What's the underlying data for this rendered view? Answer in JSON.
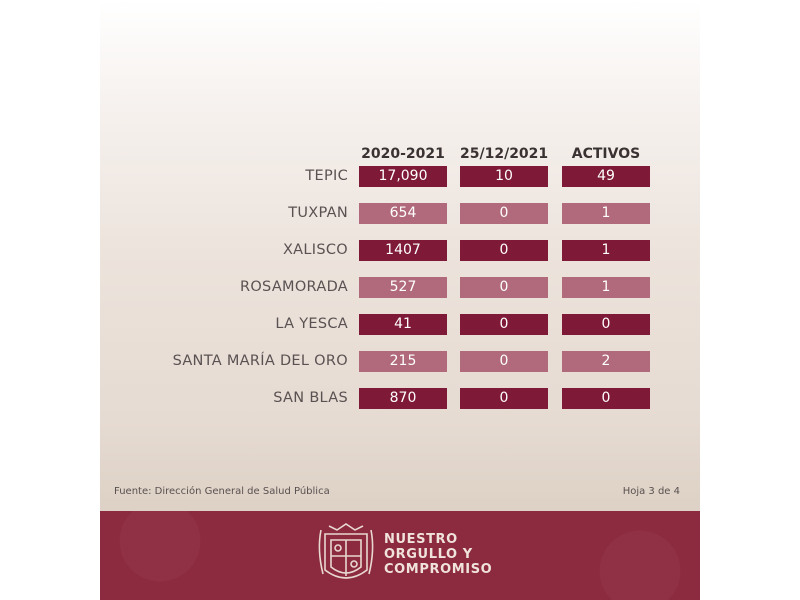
{
  "table": {
    "headers": [
      "2020-2021",
      "25/12/2021",
      "ACTIVOS"
    ],
    "rows": [
      {
        "label": "TEPIC",
        "values": [
          "17,090",
          "10",
          "49"
        ],
        "style": "dark"
      },
      {
        "label": "TUXPAN",
        "values": [
          "654",
          "0",
          "1"
        ],
        "style": "light"
      },
      {
        "label": "XALISCO",
        "values": [
          "1407",
          "0",
          "1"
        ],
        "style": "dark"
      },
      {
        "label": "ROSAMORADA",
        "values": [
          "527",
          "0",
          "1"
        ],
        "style": "light"
      },
      {
        "label": "LA YESCA",
        "values": [
          "41",
          "0",
          "0"
        ],
        "style": "dark"
      },
      {
        "label": "SANTA MARÍA DEL ORO",
        "values": [
          "215",
          "0",
          "2"
        ],
        "style": "light"
      },
      {
        "label": "SAN BLAS",
        "values": [
          "870",
          "0",
          "0"
        ],
        "style": "dark"
      }
    ]
  },
  "source": "Fuente: Dirección General de Salud Pública",
  "page": "Hoja 3 de 4",
  "footer": {
    "slogan": [
      "NUESTRO",
      "ORGULLO Y",
      "COMPROMISO"
    ],
    "emblem_icon": "state-coat-of-arms-icon"
  },
  "colors": {
    "cell_dark": "#7e1937",
    "cell_light": "#b06a7b",
    "footer_bg": "#8c2a3f",
    "footer_text": "#f0e3dc"
  }
}
